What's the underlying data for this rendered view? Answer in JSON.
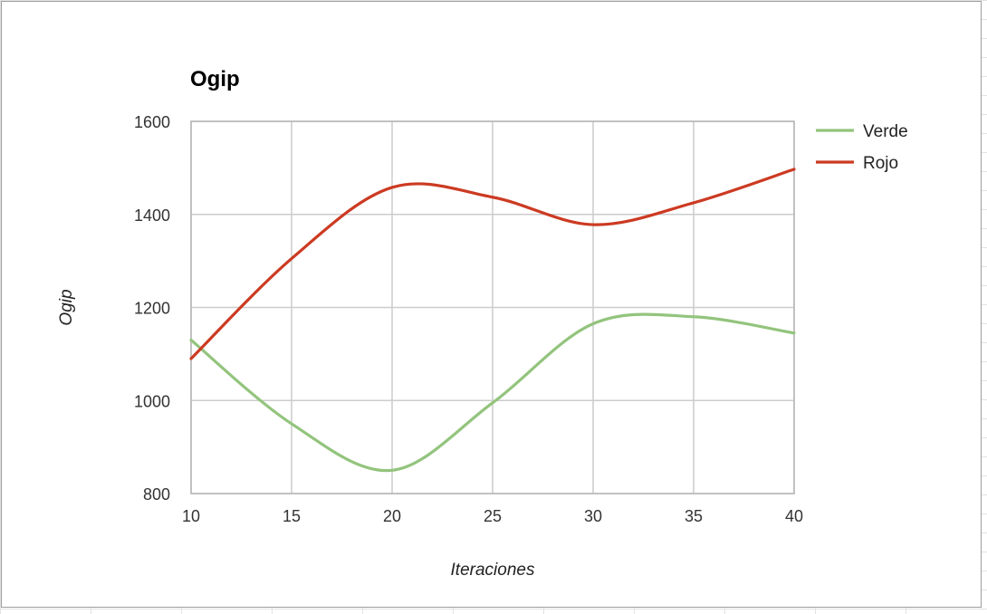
{
  "chart_data": {
    "type": "line",
    "title": "Ogip",
    "xlabel": "Iteraciones",
    "ylabel": "Ogip",
    "x": [
      10,
      15,
      20,
      25,
      30,
      35,
      40
    ],
    "xlim": [
      10,
      40
    ],
    "ylim": [
      800,
      1600
    ],
    "xticks": [
      "10",
      "15",
      "20",
      "25",
      "30",
      "35",
      "40"
    ],
    "yticks": [
      "800",
      "1000",
      "1200",
      "1400",
      "1600"
    ],
    "grid": true,
    "smooth": true,
    "legend_position": "right",
    "series": [
      {
        "name": "Verde",
        "color": "#93c47d",
        "values": [
          1130,
          950,
          850,
          995,
          1165,
          1180,
          1145
        ]
      },
      {
        "name": "Rojo",
        "color": "#cc3a22",
        "values": [
          1090,
          1305,
          1458,
          1437,
          1378,
          1425,
          1497
        ]
      }
    ]
  }
}
